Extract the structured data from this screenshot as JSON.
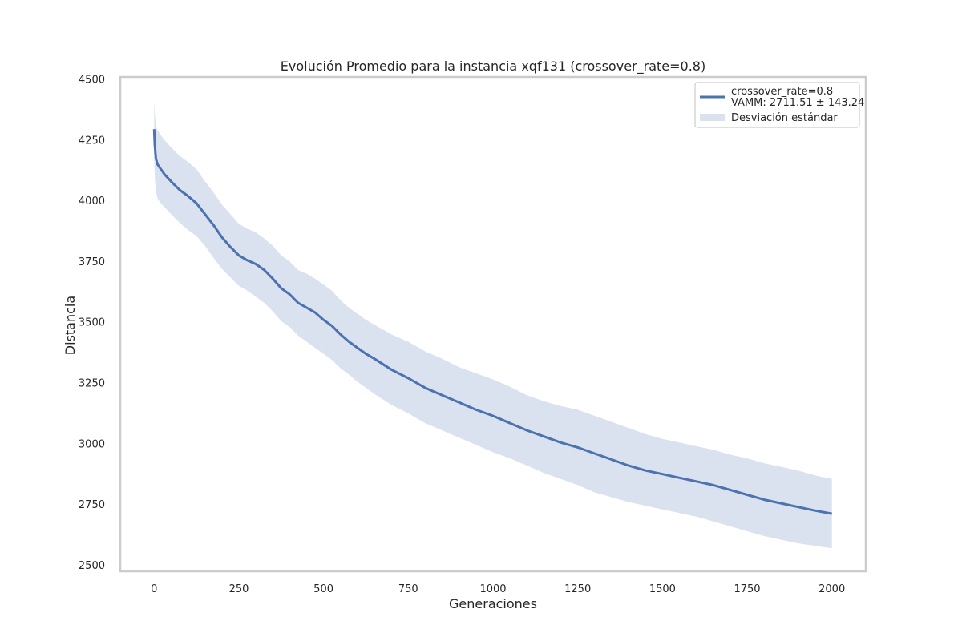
{
  "chart_data": {
    "type": "line",
    "title": "Evolución Promedio para la instancia xqf131 (crossover_rate=0.8)",
    "xlabel": "Generaciones",
    "ylabel": "Distancia",
    "xlim": [
      -100,
      2100
    ],
    "ylim": [
      2475,
      4510
    ],
    "xticks": [
      0,
      250,
      500,
      750,
      1000,
      1250,
      1500,
      1750,
      2000
    ],
    "yticks": [
      2500,
      2750,
      3000,
      3250,
      3500,
      3750,
      4000,
      4250,
      4500
    ],
    "grid": false,
    "legend_position": "top-right",
    "colors": {
      "line": "#4c72b0",
      "band": "#dae2f0",
      "frame": "#cccccc"
    },
    "legend": {
      "line_label_1": "crossover_rate=0.8",
      "line_label_2": "VAMM: 2711.51 ± 143.24",
      "band_label": "Desviación estándar"
    },
    "series": [
      {
        "name": "crossover_rate=0.8",
        "x": [
          0,
          2,
          5,
          10,
          20,
          30,
          50,
          75,
          100,
          125,
          150,
          175,
          200,
          225,
          250,
          275,
          300,
          325,
          350,
          375,
          400,
          425,
          450,
          475,
          500,
          525,
          550,
          575,
          600,
          625,
          650,
          700,
          750,
          800,
          850,
          900,
          950,
          1000,
          1050,
          1100,
          1150,
          1200,
          1250,
          1300,
          1350,
          1400,
          1450,
          1500,
          1550,
          1600,
          1650,
          1700,
          1750,
          1800,
          1850,
          1900,
          1950,
          2000
        ],
        "y": [
          4295,
          4230,
          4175,
          4150,
          4130,
          4110,
          4080,
          4045,
          4020,
          3990,
          3945,
          3900,
          3850,
          3810,
          3775,
          3755,
          3740,
          3715,
          3680,
          3640,
          3615,
          3580,
          3560,
          3540,
          3510,
          3485,
          3450,
          3420,
          3395,
          3370,
          3350,
          3305,
          3270,
          3230,
          3200,
          3170,
          3140,
          3115,
          3085,
          3055,
          3030,
          3005,
          2985,
          2960,
          2935,
          2910,
          2890,
          2875,
          2860,
          2845,
          2830,
          2810,
          2790,
          2770,
          2755,
          2740,
          2725,
          2712
        ],
        "std_lower": [
          4180,
          4100,
          4040,
          4010,
          3990,
          3975,
          3945,
          3910,
          3880,
          3855,
          3815,
          3765,
          3720,
          3685,
          3650,
          3630,
          3605,
          3580,
          3545,
          3505,
          3480,
          3445,
          3420,
          3395,
          3370,
          3345,
          3310,
          3285,
          3255,
          3230,
          3205,
          3160,
          3125,
          3085,
          3055,
          3025,
          2995,
          2965,
          2940,
          2910,
          2880,
          2855,
          2830,
          2800,
          2780,
          2760,
          2745,
          2730,
          2715,
          2700,
          2680,
          2660,
          2640,
          2620,
          2605,
          2590,
          2580,
          2570
        ],
        "std_upper": [
          4410,
          4360,
          4310,
          4290,
          4270,
          4250,
          4220,
          4185,
          4160,
          4130,
          4080,
          4035,
          3985,
          3945,
          3905,
          3885,
          3870,
          3845,
          3815,
          3775,
          3750,
          3715,
          3700,
          3680,
          3655,
          3630,
          3590,
          3560,
          3535,
          3510,
          3490,
          3450,
          3420,
          3380,
          3350,
          3315,
          3290,
          3265,
          3235,
          3200,
          3175,
          3155,
          3140,
          3115,
          3090,
          3065,
          3040,
          3020,
          3005,
          2990,
          2975,
          2955,
          2940,
          2920,
          2905,
          2890,
          2870,
          2855
        ]
      }
    ]
  }
}
